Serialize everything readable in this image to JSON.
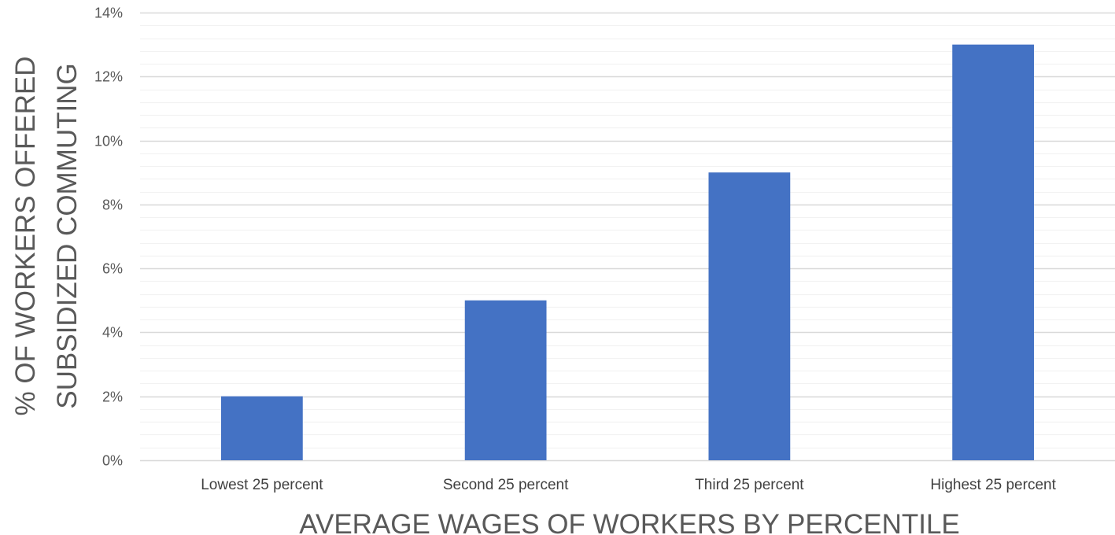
{
  "chart_data": {
    "type": "bar",
    "categories": [
      "Lowest 25 percent",
      "Second 25 percent",
      "Third 25 percent",
      "Highest 25 percent"
    ],
    "values": [
      2,
      5,
      9,
      13
    ],
    "xlabel": "AVERAGE WAGES OF WORKERS BY PERCENTILE",
    "ylabel_lines": [
      "% OF WORKERS OFFERED",
      "SUBSIDIZED COMMUTING"
    ],
    "yticks": [
      "0%",
      "2%",
      "4%",
      "6%",
      "8%",
      "10%",
      "12%",
      "14%"
    ],
    "ylim": [
      0,
      14
    ],
    "major_grid_step": 2,
    "minor_grid_step": 0.4,
    "grid": true,
    "bar_color": "#4472C4",
    "major_grid_color": "#D9D9D9",
    "minor_grid_color": "#F2F2F2"
  }
}
